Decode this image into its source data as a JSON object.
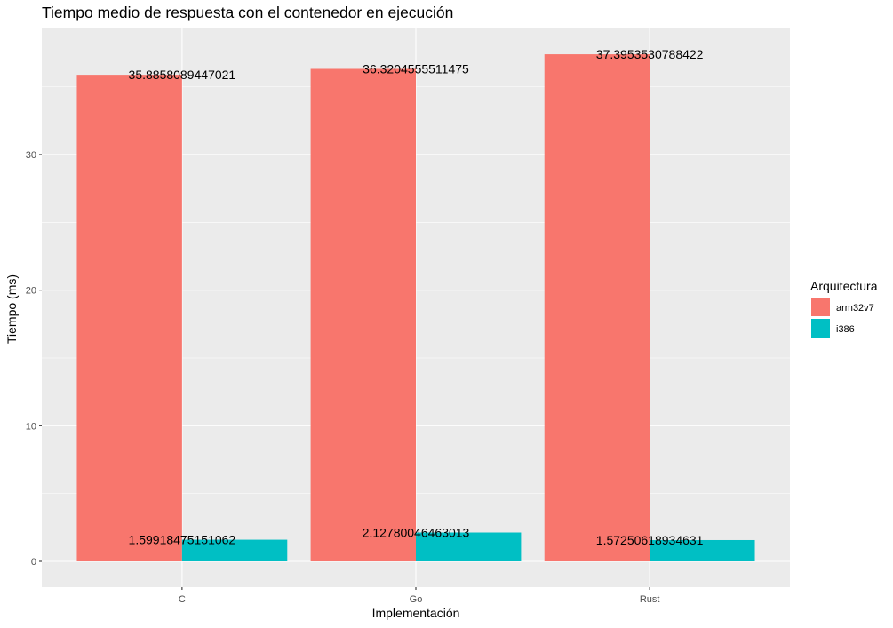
{
  "chart_data": {
    "type": "bar",
    "title": "Tiempo medio de respuesta con el contenedor en ejecución",
    "xlabel": "Implementación",
    "ylabel": "Tiempo (ms)",
    "categories": [
      "C",
      "Go",
      "Rust"
    ],
    "ylim": [
      -1.9,
      39.3
    ],
    "yticks": [
      0,
      10,
      20,
      30
    ],
    "grid": true,
    "legend": {
      "title": "Arquitectura",
      "position": "right"
    },
    "series": [
      {
        "name": "arm32v7",
        "color": "#F8766D",
        "values": [
          35.8858089447021,
          36.3204555511475,
          37.3953530788422
        ],
        "labels": [
          "35.8858089447021",
          "36.3204555511475",
          "37.3953530788422"
        ]
      },
      {
        "name": "i386",
        "color": "#00BFC4",
        "values": [
          1.59918475151062,
          2.12780046463013,
          1.57250618934631
        ],
        "labels": [
          "1.59918475151062",
          "2.12780046463013",
          "1.57250618934631"
        ]
      }
    ]
  }
}
